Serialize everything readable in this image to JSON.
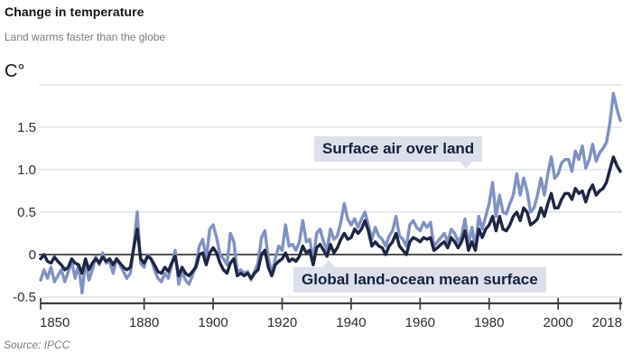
{
  "header": {
    "title": "Change in temperature",
    "subtitle": "Land warms faster than the globe",
    "unit_label": "C°"
  },
  "annotations": {
    "land_label": "Surface air over land",
    "global_label": "Global land-ocean mean surface"
  },
  "source": "Source: IPCC",
  "colors": {
    "land": "#8091c3",
    "global": "#1e2643",
    "grid": "#dfe4ec",
    "zero_line": "#1a1a1a",
    "axis": "#3d3d3d",
    "label_bg": "#dde0eb",
    "label_text": "#13203e",
    "tick_text": "#2e2e2e"
  },
  "chart_data": {
    "type": "line",
    "title": "Change in temperature",
    "subtitle": "Land warms faster than the globe",
    "ylabel": "C°",
    "xlabel": "",
    "grid": true,
    "legend_position": "inline-labels",
    "x_range": [
      1850,
      2018
    ],
    "ylim": [
      -0.6,
      2.05
    ],
    "x_ticks": [
      1850,
      1880,
      1900,
      1920,
      1940,
      1960,
      1980,
      2000,
      2018
    ],
    "y_ticks": [
      {
        "v": 2.0,
        "label": ""
      },
      {
        "v": 1.5,
        "label": "1.5"
      },
      {
        "v": 1.0,
        "label": "1.0"
      },
      {
        "v": 0.5,
        "label": "0.5"
      },
      {
        "v": 0.0,
        "label": "0"
      },
      {
        "v": -0.5,
        "label": "-0.5"
      }
    ],
    "start_year": 1850,
    "series": [
      {
        "name": "Surface air over land",
        "color_key": "land",
        "values": [
          -0.3,
          -0.18,
          -0.28,
          -0.15,
          -0.32,
          -0.25,
          -0.18,
          -0.32,
          -0.2,
          -0.08,
          -0.28,
          -0.12,
          -0.45,
          -0.08,
          -0.3,
          -0.18,
          -0.02,
          -0.12,
          0.02,
          -0.1,
          -0.08,
          -0.22,
          -0.05,
          -0.12,
          -0.2,
          -0.28,
          -0.22,
          0.1,
          0.5,
          -0.1,
          -0.15,
          0.0,
          -0.05,
          -0.18,
          -0.28,
          -0.32,
          -0.22,
          -0.28,
          -0.12,
          0.05,
          -0.35,
          -0.2,
          -0.3,
          -0.35,
          -0.25,
          -0.12,
          0.1,
          0.18,
          -0.05,
          0.3,
          0.35,
          0.2,
          0.0,
          -0.05,
          -0.12,
          0.25,
          0.15,
          -0.2,
          -0.18,
          -0.22,
          -0.2,
          -0.3,
          -0.2,
          -0.1,
          0.2,
          0.28,
          -0.05,
          -0.22,
          -0.05,
          0.1,
          0.05,
          0.35,
          0.1,
          0.12,
          0.05,
          0.15,
          0.4,
          0.15,
          0.18,
          -0.08,
          0.25,
          0.3,
          0.15,
          0.05,
          0.3,
          0.18,
          0.22,
          0.38,
          0.6,
          0.42,
          0.35,
          0.42,
          0.32,
          0.42,
          0.5,
          0.35,
          0.18,
          0.32,
          0.22,
          0.18,
          0.1,
          0.22,
          0.28,
          0.45,
          0.22,
          0.18,
          0.1,
          0.35,
          0.4,
          0.32,
          0.28,
          0.38,
          0.32,
          0.38,
          0.1,
          0.15,
          0.2,
          0.25,
          0.15,
          0.3,
          0.25,
          0.15,
          0.22,
          0.42,
          0.12,
          0.32,
          0.08,
          0.45,
          0.3,
          0.45,
          0.6,
          0.85,
          0.45,
          0.7,
          0.5,
          0.48,
          0.6,
          0.7,
          0.95,
          0.7,
          0.9,
          0.75,
          0.5,
          0.55,
          0.7,
          0.9,
          0.7,
          0.95,
          1.15,
          0.9,
          0.95,
          1.08,
          1.12,
          1.12,
          0.98,
          1.22,
          1.12,
          1.28,
          1.02,
          1.12,
          1.3,
          1.1,
          1.2,
          1.25,
          1.32,
          1.55,
          1.9,
          1.72,
          1.58
        ]
      },
      {
        "name": "Global land-ocean mean surface",
        "color_key": "global",
        "values": [
          -0.05,
          0.0,
          -0.08,
          -0.1,
          -0.03,
          -0.08,
          -0.12,
          -0.18,
          -0.15,
          -0.05,
          -0.1,
          -0.12,
          -0.22,
          -0.05,
          -0.18,
          -0.1,
          -0.05,
          -0.1,
          -0.03,
          -0.08,
          -0.05,
          -0.12,
          -0.05,
          -0.1,
          -0.15,
          -0.18,
          -0.15,
          0.08,
          0.3,
          -0.05,
          -0.1,
          -0.02,
          -0.05,
          -0.12,
          -0.2,
          -0.22,
          -0.15,
          -0.2,
          -0.1,
          -0.02,
          -0.25,
          -0.15,
          -0.22,
          -0.25,
          -0.2,
          -0.15,
          0.0,
          0.02,
          -0.12,
          0.02,
          0.08,
          0.02,
          -0.1,
          -0.18,
          -0.22,
          -0.1,
          -0.05,
          -0.25,
          -0.22,
          -0.25,
          -0.22,
          -0.28,
          -0.22,
          -0.18,
          0.0,
          0.05,
          -0.15,
          -0.25,
          -0.12,
          -0.08,
          -0.05,
          0.02,
          -0.08,
          -0.05,
          -0.08,
          -0.02,
          0.1,
          0.02,
          0.05,
          -0.12,
          0.08,
          0.12,
          0.05,
          -0.02,
          0.12,
          0.02,
          0.08,
          0.18,
          0.25,
          0.18,
          0.2,
          0.3,
          0.25,
          0.3,
          0.4,
          0.28,
          0.1,
          0.15,
          0.1,
          0.08,
          0.0,
          0.1,
          0.15,
          0.25,
          0.1,
          0.05,
          0.0,
          0.15,
          0.2,
          0.18,
          0.15,
          0.2,
          0.18,
          0.2,
          0.05,
          0.08,
          0.12,
          0.15,
          0.08,
          0.2,
          0.15,
          0.08,
          0.15,
          0.28,
          0.05,
          0.15,
          0.05,
          0.3,
          0.2,
          0.3,
          0.35,
          0.45,
          0.28,
          0.45,
          0.3,
          0.28,
          0.35,
          0.45,
          0.5,
          0.4,
          0.55,
          0.5,
          0.35,
          0.38,
          0.42,
          0.55,
          0.45,
          0.6,
          0.72,
          0.55,
          0.55,
          0.65,
          0.72,
          0.72,
          0.65,
          0.78,
          0.72,
          0.75,
          0.62,
          0.75,
          0.82,
          0.7,
          0.75,
          0.78,
          0.85,
          1.0,
          1.15,
          1.05,
          0.98
        ]
      }
    ]
  }
}
